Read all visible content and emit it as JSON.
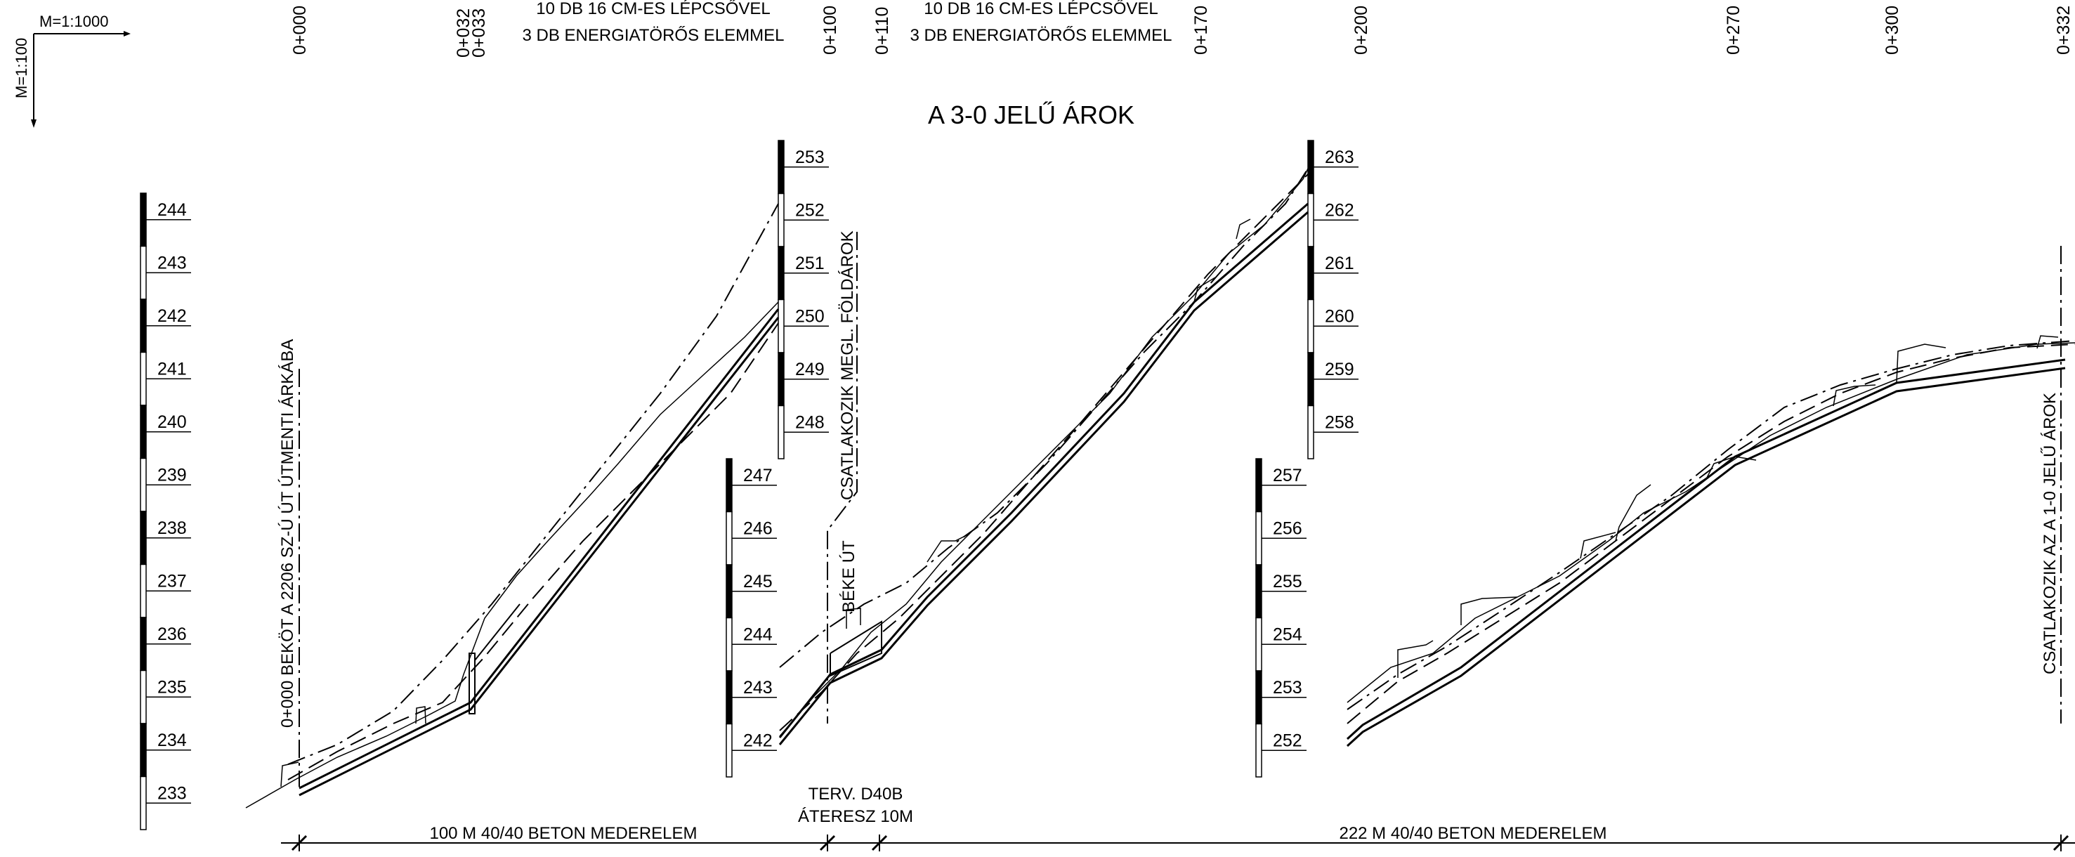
{
  "title": "A 3-0 JELŰ ÁROK",
  "scales": {
    "horizontal": "M=1:1000",
    "vertical": "M=1:100"
  },
  "stations": [
    "0+000",
    "0+032",
    "0+033",
    "0+100",
    "0+110",
    "0+170",
    "0+200",
    "0+270",
    "0+300",
    "0+332"
  ],
  "stair_notes": [
    {
      "line1": "10 DB 16 CM-ES LÉPCSŐVEL",
      "line2": "3 DB ENERGIATÖRŐS ELEMMEL"
    },
    {
      "line1": "10 DB 16 CM-ES LÉPCSŐVEL",
      "line2": "3 DB ENERGIATÖRŐS ELEMMEL"
    }
  ],
  "vertical_labels": {
    "start": "0+000 BEKÖT A 2206 SZ-Ú ÚT ÚTMENTI ÁRKÁBA",
    "connect_ditch": "CSATLAKOZIK MEGL. FÖLDÁROK",
    "road": "BÉKE ÚT",
    "end": "CSATLAKOZIK AZ A 1-0 JELŰ ÁROK"
  },
  "culvert": {
    "line1": "TERV. D40B",
    "line2": "ÁTERESZ 10M"
  },
  "segments": [
    "100 M 40/40 BETON MEDERELEM",
    "222 M 40/40 BETON MEDERELEM"
  ],
  "elevation_scales": [
    {
      "labels": [
        "244",
        "243",
        "242",
        "241",
        "240",
        "239",
        "238",
        "237",
        "236",
        "235",
        "234",
        "233"
      ]
    },
    {
      "labels": [
        "253",
        "252",
        "251",
        "250",
        "249",
        "248"
      ]
    },
    {
      "labels": [
        "247",
        "246",
        "245",
        "244",
        "243",
        "242"
      ]
    },
    {
      "labels": [
        "263",
        "262",
        "261",
        "260",
        "259",
        "258"
      ]
    },
    {
      "labels": [
        "257",
        "256",
        "255",
        "254",
        "253",
        "252"
      ]
    }
  ]
}
